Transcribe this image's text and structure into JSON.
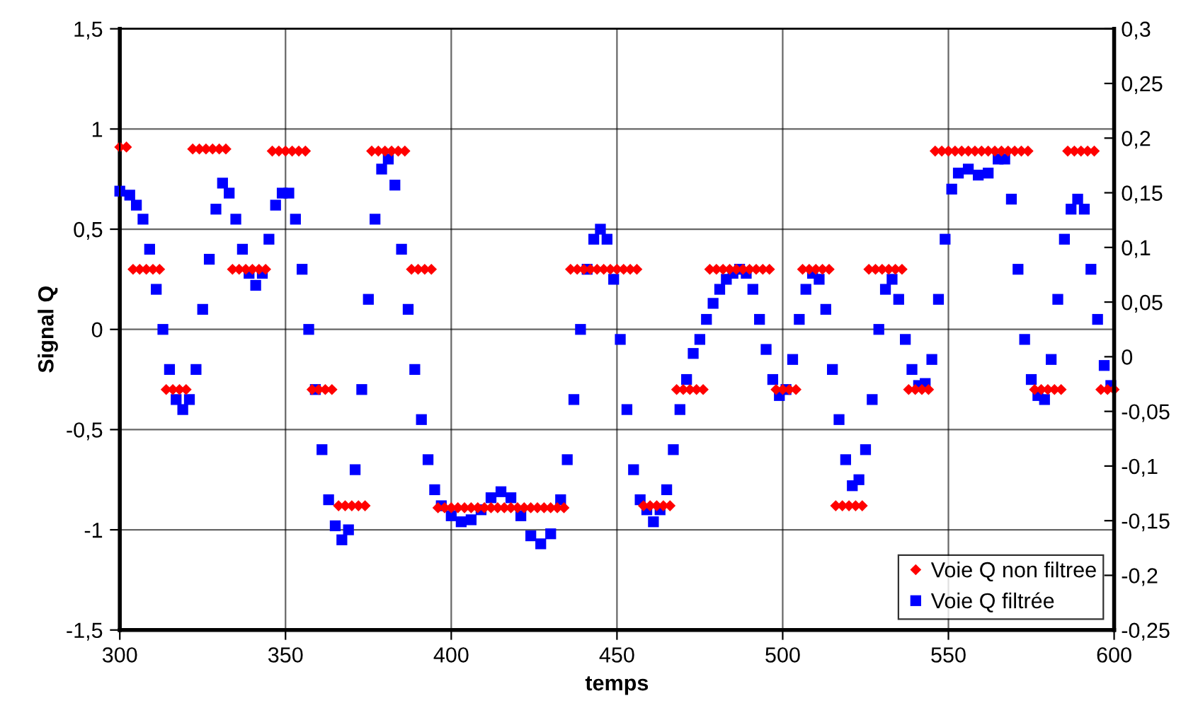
{
  "chart_data": {
    "type": "scatter",
    "xlabel": "temps",
    "ylabel": "Signal Q",
    "xlim": [
      300,
      600
    ],
    "xticks": [
      300,
      350,
      400,
      450,
      500,
      550,
      600
    ],
    "ylim": [
      -1.5,
      1.5
    ],
    "yticks": [
      {
        "value": -1.5,
        "label": "-1,5"
      },
      {
        "value": -1,
        "label": "-1"
      },
      {
        "value": -0.5,
        "label": "-0,5"
      },
      {
        "value": 0,
        "label": "0"
      },
      {
        "value": 0.5,
        "label": "0,5"
      },
      {
        "value": 1,
        "label": "1"
      },
      {
        "value": 1.5,
        "label": "1,5"
      }
    ],
    "y2lim": [
      -0.25,
      0.3
    ],
    "y2ticks": [
      {
        "value": -0.25,
        "label": "-0,25"
      },
      {
        "value": -0.2,
        "label": "-0,2"
      },
      {
        "value": -0.15,
        "label": "-0,15"
      },
      {
        "value": -0.1,
        "label": "-0,1"
      },
      {
        "value": -0.05,
        "label": "-0,05"
      },
      {
        "value": 0,
        "label": "0"
      },
      {
        "value": 0.05,
        "label": "0,05"
      },
      {
        "value": 0.1,
        "label": "0,1"
      },
      {
        "value": 0.15,
        "label": "0,15"
      },
      {
        "value": 0.2,
        "label": "0,2"
      },
      {
        "value": 0.25,
        "label": "0,25"
      },
      {
        "value": 0.3,
        "label": "0,3"
      }
    ],
    "grid": true,
    "legend": "bottom right",
    "series": [
      {
        "name": "Voie Q non filtree",
        "color": "#ff0000",
        "marker": "diamond",
        "x": [
          300,
          302,
          304,
          306,
          308,
          310,
          312,
          314,
          316,
          318,
          320,
          322,
          324,
          326,
          328,
          330,
          332,
          334,
          336,
          338,
          340,
          342,
          344,
          346,
          348,
          350,
          352,
          354,
          356,
          358,
          360,
          362,
          364,
          366,
          368,
          370,
          372,
          374,
          376,
          378,
          380,
          382,
          384,
          386,
          388,
          390,
          392,
          394,
          396,
          398,
          400,
          402,
          404,
          406,
          408,
          410,
          412,
          414,
          416,
          418,
          420,
          422,
          424,
          426,
          428,
          430,
          432,
          434,
          436,
          438,
          440,
          442,
          444,
          446,
          448,
          450,
          452,
          454,
          456,
          458,
          460,
          462,
          464,
          466,
          468,
          470,
          472,
          474,
          476,
          478,
          480,
          482,
          484,
          486,
          488,
          490,
          492,
          494,
          496,
          498,
          500,
          502,
          504,
          506,
          508,
          510,
          512,
          514,
          516,
          518,
          520,
          522,
          524,
          526,
          528,
          530,
          532,
          534,
          536,
          538,
          540,
          542,
          544,
          546,
          548,
          550,
          552,
          554,
          556,
          558,
          560,
          562,
          564,
          566,
          568,
          570,
          572,
          574,
          576,
          578,
          580,
          582,
          584,
          586,
          588,
          590,
          592,
          594,
          596,
          598,
          600
        ],
        "values": [
          0.91,
          0.91,
          0.3,
          0.3,
          0.3,
          0.3,
          0.3,
          -0.3,
          -0.3,
          -0.3,
          -0.3,
          0.9,
          0.9,
          0.9,
          0.9,
          0.9,
          0.9,
          0.3,
          0.3,
          0.3,
          0.3,
          0.3,
          0.3,
          0.89,
          0.89,
          0.89,
          0.89,
          0.89,
          0.89,
          -0.3,
          -0.3,
          -0.3,
          -0.3,
          -0.88,
          -0.88,
          -0.88,
          -0.88,
          -0.88,
          0.89,
          0.89,
          0.89,
          0.89,
          0.89,
          0.89,
          0.3,
          0.3,
          0.3,
          0.3,
          -0.89,
          -0.89,
          -0.89,
          -0.89,
          -0.89,
          -0.89,
          -0.89,
          -0.89,
          -0.89,
          -0.89,
          -0.89,
          -0.89,
          -0.89,
          -0.89,
          -0.89,
          -0.89,
          -0.89,
          -0.89,
          -0.89,
          -0.89,
          0.3,
          0.3,
          0.3,
          0.3,
          0.3,
          0.3,
          0.3,
          0.3,
          0.3,
          0.3,
          0.3,
          -0.88,
          -0.88,
          -0.88,
          -0.88,
          -0.88,
          -0.3,
          -0.3,
          -0.3,
          -0.3,
          -0.3,
          0.3,
          0.3,
          0.3,
          0.3,
          0.3,
          0.3,
          0.3,
          0.3,
          0.3,
          0.3,
          -0.3,
          -0.3,
          -0.3,
          -0.3,
          0.3,
          0.3,
          0.3,
          0.3,
          0.3,
          -0.88,
          -0.88,
          -0.88,
          -0.88,
          -0.88,
          0.3,
          0.3,
          0.3,
          0.3,
          0.3,
          0.3,
          -0.3,
          -0.3,
          -0.3,
          -0.3,
          0.89,
          0.89,
          0.89,
          0.89,
          0.89,
          0.89,
          0.89,
          0.89,
          0.89,
          0.89,
          0.89,
          0.89,
          0.89,
          0.89,
          0.89,
          -0.3,
          -0.3,
          -0.3,
          -0.3,
          -0.3,
          0.89,
          0.89,
          0.89,
          0.89,
          0.89,
          -0.3,
          -0.3,
          -0.3
        ]
      },
      {
        "name": "Voie Q filtrée",
        "color": "#0000ff",
        "marker": "square",
        "x": [
          300,
          303,
          305,
          307,
          309,
          311,
          313,
          315,
          317,
          319,
          321,
          323,
          325,
          327,
          329,
          331,
          333,
          335,
          337,
          339,
          341,
          343,
          345,
          347,
          349,
          351,
          353,
          355,
          357,
          359,
          361,
          363,
          365,
          367,
          369,
          371,
          373,
          375,
          377,
          379,
          381,
          383,
          385,
          387,
          389,
          391,
          393,
          395,
          397,
          400,
          403,
          406,
          409,
          412,
          415,
          418,
          421,
          424,
          427,
          430,
          433,
          435,
          437,
          439,
          441,
          443,
          445,
          447,
          449,
          451,
          453,
          455,
          457,
          459,
          461,
          463,
          465,
          467,
          469,
          471,
          473,
          475,
          477,
          479,
          481,
          483,
          485,
          487,
          489,
          491,
          493,
          495,
          497,
          499,
          501,
          503,
          505,
          507,
          509,
          511,
          513,
          515,
          517,
          519,
          521,
          523,
          525,
          527,
          529,
          531,
          533,
          535,
          537,
          539,
          541,
          543,
          545,
          547,
          549,
          551,
          553,
          556,
          559,
          562,
          565,
          567,
          569,
          571,
          573,
          575,
          577,
          579,
          581,
          583,
          585,
          587,
          589,
          591,
          593,
          595,
          597,
          599
        ],
        "values": [
          0.69,
          0.67,
          0.62,
          0.55,
          0.4,
          0.2,
          0.0,
          -0.2,
          -0.35,
          -0.4,
          -0.35,
          -0.2,
          0.1,
          0.35,
          0.6,
          0.73,
          0.68,
          0.55,
          0.4,
          0.28,
          0.22,
          0.28,
          0.45,
          0.62,
          0.68,
          0.68,
          0.55,
          0.3,
          0.0,
          -0.3,
          -0.6,
          -0.85,
          -0.98,
          -1.05,
          -1.0,
          -0.7,
          -0.3,
          0.15,
          0.55,
          0.8,
          0.85,
          0.72,
          0.4,
          0.1,
          -0.2,
          -0.45,
          -0.65,
          -0.8,
          -0.88,
          -0.93,
          -0.96,
          -0.95,
          -0.9,
          -0.84,
          -0.81,
          -0.84,
          -0.93,
          -1.03,
          -1.07,
          -1.02,
          -0.85,
          -0.65,
          -0.35,
          0.0,
          0.3,
          0.45,
          0.5,
          0.45,
          0.25,
          -0.05,
          -0.4,
          -0.7,
          -0.85,
          -0.9,
          -0.96,
          -0.9,
          -0.8,
          -0.6,
          -0.4,
          -0.25,
          -0.12,
          -0.05,
          0.05,
          0.13,
          0.2,
          0.25,
          0.28,
          0.3,
          0.28,
          0.2,
          0.05,
          -0.1,
          -0.25,
          -0.33,
          -0.3,
          -0.15,
          0.05,
          0.2,
          0.28,
          0.25,
          0.1,
          -0.2,
          -0.45,
          -0.65,
          -0.78,
          -0.75,
          -0.6,
          -0.35,
          0.0,
          0.2,
          0.25,
          0.15,
          -0.05,
          -0.2,
          -0.28,
          -0.27,
          -0.15,
          0.15,
          0.45,
          0.7,
          0.78,
          0.8,
          0.77,
          0.78,
          0.85,
          0.85,
          0.65,
          0.3,
          -0.05,
          -0.25,
          -0.33,
          -0.35,
          -0.15,
          0.15,
          0.45,
          0.6,
          0.65,
          0.6,
          0.3,
          0.05,
          -0.18,
          -0.28
        ]
      }
    ]
  }
}
